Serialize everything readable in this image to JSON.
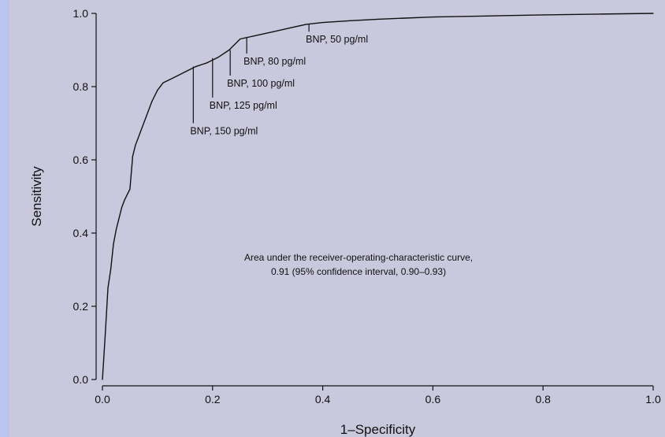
{
  "chart_data": {
    "type": "line",
    "xlabel": "1–Specificity",
    "ylabel": "Sensitivity",
    "xlim": [
      0.0,
      1.0
    ],
    "ylim": [
      0.0,
      1.0
    ],
    "xticks": [
      "0.0",
      "0.2",
      "0.4",
      "0.6",
      "0.8",
      "1.0"
    ],
    "yticks": [
      "0.0",
      "0.2",
      "0.4",
      "0.6",
      "0.8",
      "1.0"
    ],
    "grid": false,
    "series": [
      {
        "x": [
          0.0,
          0.005,
          0.01,
          0.015,
          0.02,
          0.025,
          0.03,
          0.035,
          0.04,
          0.05,
          0.055,
          0.06,
          0.07,
          0.08,
          0.09,
          0.1,
          0.11,
          0.13,
          0.15,
          0.17,
          0.19,
          0.21,
          0.23,
          0.25,
          0.28,
          0.31,
          0.34,
          0.37,
          0.4,
          0.45,
          0.5,
          0.55,
          0.6,
          0.7,
          0.8,
          0.9,
          1.0
        ],
        "y": [
          0.0,
          0.12,
          0.25,
          0.3,
          0.37,
          0.41,
          0.44,
          0.47,
          0.49,
          0.52,
          0.61,
          0.64,
          0.68,
          0.72,
          0.76,
          0.79,
          0.81,
          0.825,
          0.84,
          0.855,
          0.865,
          0.88,
          0.9,
          0.93,
          0.94,
          0.95,
          0.96,
          0.97,
          0.975,
          0.98,
          0.984,
          0.987,
          0.99,
          0.993,
          0.996,
          0.998,
          1.0
        ]
      }
    ],
    "annotations": [
      {
        "label": "BNP, 50 pg/ml",
        "x": 0.375,
        "y": 0.97,
        "label_y": 0.92
      },
      {
        "label": "BNP, 80 pg/ml",
        "x": 0.262,
        "y": 0.935,
        "label_y": 0.86
      },
      {
        "label": "BNP, 100 pg/ml",
        "x": 0.232,
        "y": 0.9,
        "label_y": 0.8
      },
      {
        "label": "BNP, 125 pg/ml",
        "x": 0.2,
        "y": 0.878,
        "label_y": 0.74
      },
      {
        "label": "BNP, 150 pg/ml",
        "x": 0.165,
        "y": 0.855,
        "label_y": 0.67
      }
    ],
    "note_lines": [
      "Area under the receiver-operating-characteristic curve,",
      "0.91 (95% confidence interval, 0.90–0.93)"
    ],
    "colors": {
      "background": "#c9c8dc",
      "left_border": "#b9c5ee",
      "ink": "#111111"
    }
  }
}
